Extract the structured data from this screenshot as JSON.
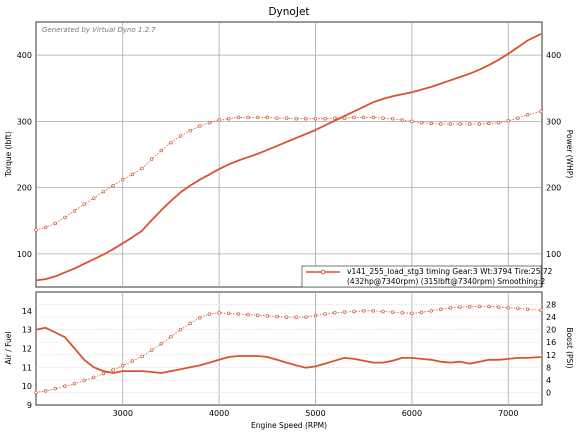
{
  "chart_data": [
    {
      "type": "line",
      "title": "DynoJet",
      "watermark": "Generated by Virtual Dyno 1.2.7",
      "xlabel": "Engine Speed (RPM)",
      "ylabel": "Torque (lbft)",
      "ylabel_right": "Power (WHP)",
      "xlim": [
        2100,
        7350
      ],
      "ylim": [
        50,
        450
      ],
      "y_ticks": [
        100,
        200,
        300,
        400
      ],
      "grid": true,
      "legend_position": "bottom-right",
      "legend": {
        "line1": "v141_255_load_stg3 timing Gear:3 Wt:3794 Tire:25.72",
        "line2": "(432hp@7340rpm) (315lbft@7340rpm) Smoothing:2"
      },
      "colors": {
        "series": "#d9532f",
        "grid": "#a8a8a8",
        "frame": "#333333"
      },
      "series": [
        {
          "style": "solid",
          "axis": "right",
          "x": [
            2100,
            2200,
            2300,
            2400,
            2500,
            2600,
            2700,
            2800,
            2900,
            3000,
            3100,
            3200,
            3300,
            3400,
            3500,
            3600,
            3700,
            3800,
            3900,
            4000,
            4100,
            4200,
            4300,
            4400,
            4500,
            4600,
            4700,
            4800,
            4900,
            5000,
            5100,
            5200,
            5300,
            5400,
            5500,
            5600,
            5700,
            5800,
            5900,
            6000,
            6100,
            6200,
            6300,
            6400,
            6500,
            6600,
            6700,
            6800,
            6900,
            7000,
            7100,
            7200,
            7340
          ],
          "values": [
            60,
            62,
            66,
            72,
            78,
            85,
            92,
            99,
            107,
            116,
            125,
            135,
            151,
            166,
            180,
            193,
            203,
            212,
            220,
            228,
            235,
            241,
            246,
            251,
            257,
            263,
            269,
            275,
            281,
            287,
            294,
            301,
            308,
            315,
            322,
            329,
            334,
            338,
            341,
            344,
            348,
            352,
            357,
            362,
            367,
            372,
            378,
            385,
            393,
            402,
            412,
            422,
            432
          ]
        },
        {
          "style": "dotted",
          "axis": "left",
          "x": [
            2100,
            2200,
            2300,
            2400,
            2500,
            2600,
            2700,
            2800,
            2900,
            3000,
            3100,
            3200,
            3300,
            3400,
            3500,
            3600,
            3700,
            3800,
            3900,
            4000,
            4100,
            4200,
            4300,
            4400,
            4500,
            4600,
            4700,
            4800,
            4900,
            5000,
            5100,
            5200,
            5300,
            5400,
            5500,
            5600,
            5700,
            5800,
            5900,
            6000,
            6100,
            6200,
            6300,
            6400,
            6500,
            6600,
            6700,
            6800,
            6900,
            7000,
            7100,
            7200,
            7340
          ],
          "values": [
            136,
            140,
            146,
            155,
            165,
            175,
            184,
            194,
            203,
            212,
            220,
            229,
            243,
            256,
            268,
            278,
            286,
            293,
            298,
            302,
            304,
            306,
            306,
            306,
            306,
            305,
            305,
            304,
            304,
            304,
            304,
            305,
            305,
            306,
            306,
            306,
            305,
            304,
            302,
            300,
            298,
            297,
            296,
            296,
            296,
            296,
            296,
            297,
            298,
            301,
            305,
            310,
            315
          ]
        }
      ]
    },
    {
      "type": "line",
      "xlabel": "Engine Speed (RPM)",
      "ylabel": "Air / Fuel",
      "ylabel_right": "Boost (PSI)",
      "xlim": [
        2100,
        7350
      ],
      "x_ticks": [
        3000,
        4000,
        5000,
        6000,
        7000
      ],
      "ylim": [
        9,
        15
      ],
      "y_ticks": [
        9,
        10,
        11,
        12,
        13,
        14
      ],
      "ylim_right": [
        -4,
        32
      ],
      "y_ticks_right": [
        0,
        4,
        8,
        12,
        16,
        20,
        24,
        28
      ],
      "grid": true,
      "colors": {
        "series": "#d9532f"
      },
      "series": [
        {
          "style": "solid",
          "axis": "left",
          "x": [
            2100,
            2200,
            2300,
            2400,
            2500,
            2600,
            2700,
            2800,
            2900,
            3000,
            3100,
            3200,
            3300,
            3400,
            3500,
            3600,
            3700,
            3800,
            3900,
            4000,
            4100,
            4200,
            4300,
            4400,
            4500,
            4600,
            4700,
            4800,
            4900,
            5000,
            5100,
            5200,
            5300,
            5400,
            5500,
            5600,
            5700,
            5800,
            5900,
            6000,
            6100,
            6200,
            6300,
            6400,
            6500,
            6600,
            6700,
            6800,
            6900,
            7000,
            7100,
            7200,
            7340
          ],
          "values": [
            13.0,
            13.1,
            12.85,
            12.6,
            12.0,
            11.4,
            11.0,
            10.8,
            10.7,
            10.8,
            10.8,
            10.8,
            10.75,
            10.7,
            10.8,
            10.9,
            11.0,
            11.1,
            11.25,
            11.4,
            11.55,
            11.6,
            11.6,
            11.6,
            11.55,
            11.4,
            11.25,
            11.1,
            10.98,
            11.05,
            11.2,
            11.35,
            11.5,
            11.45,
            11.35,
            11.25,
            11.25,
            11.35,
            11.5,
            11.5,
            11.45,
            11.4,
            11.3,
            11.25,
            11.3,
            11.2,
            11.3,
            11.4,
            11.4,
            11.45,
            11.5,
            11.5,
            11.55
          ]
        },
        {
          "style": "dotted",
          "axis": "right",
          "x": [
            2100,
            2200,
            2300,
            2400,
            2500,
            2600,
            2700,
            2800,
            2900,
            3000,
            3100,
            3200,
            3300,
            3400,
            3500,
            3600,
            3700,
            3800,
            3900,
            4000,
            4100,
            4200,
            4300,
            4400,
            4500,
            4600,
            4700,
            4800,
            4900,
            5000,
            5100,
            5200,
            5300,
            5400,
            5500,
            5600,
            5700,
            5800,
            5900,
            6000,
            6100,
            6200,
            6300,
            6400,
            6500,
            6600,
            6700,
            6800,
            6900,
            7000,
            7100,
            7200,
            7340
          ],
          "values": [
            0.0,
            0.5,
            1.2,
            2.0,
            2.8,
            3.8,
            4.8,
            6.0,
            7.2,
            8.5,
            10.0,
            11.5,
            13.5,
            15.5,
            17.8,
            20.0,
            22.0,
            23.8,
            25.0,
            25.4,
            25.2,
            25.0,
            24.8,
            24.6,
            24.4,
            24.2,
            24.0,
            24.0,
            24.0,
            24.5,
            25.0,
            25.4,
            25.6,
            25.8,
            26.0,
            26.0,
            25.8,
            25.6,
            25.4,
            25.2,
            25.5,
            26.0,
            26.5,
            27.0,
            27.2,
            27.3,
            27.4,
            27.4,
            27.2,
            27.0,
            26.8,
            26.5,
            26.2
          ]
        }
      ]
    }
  ]
}
